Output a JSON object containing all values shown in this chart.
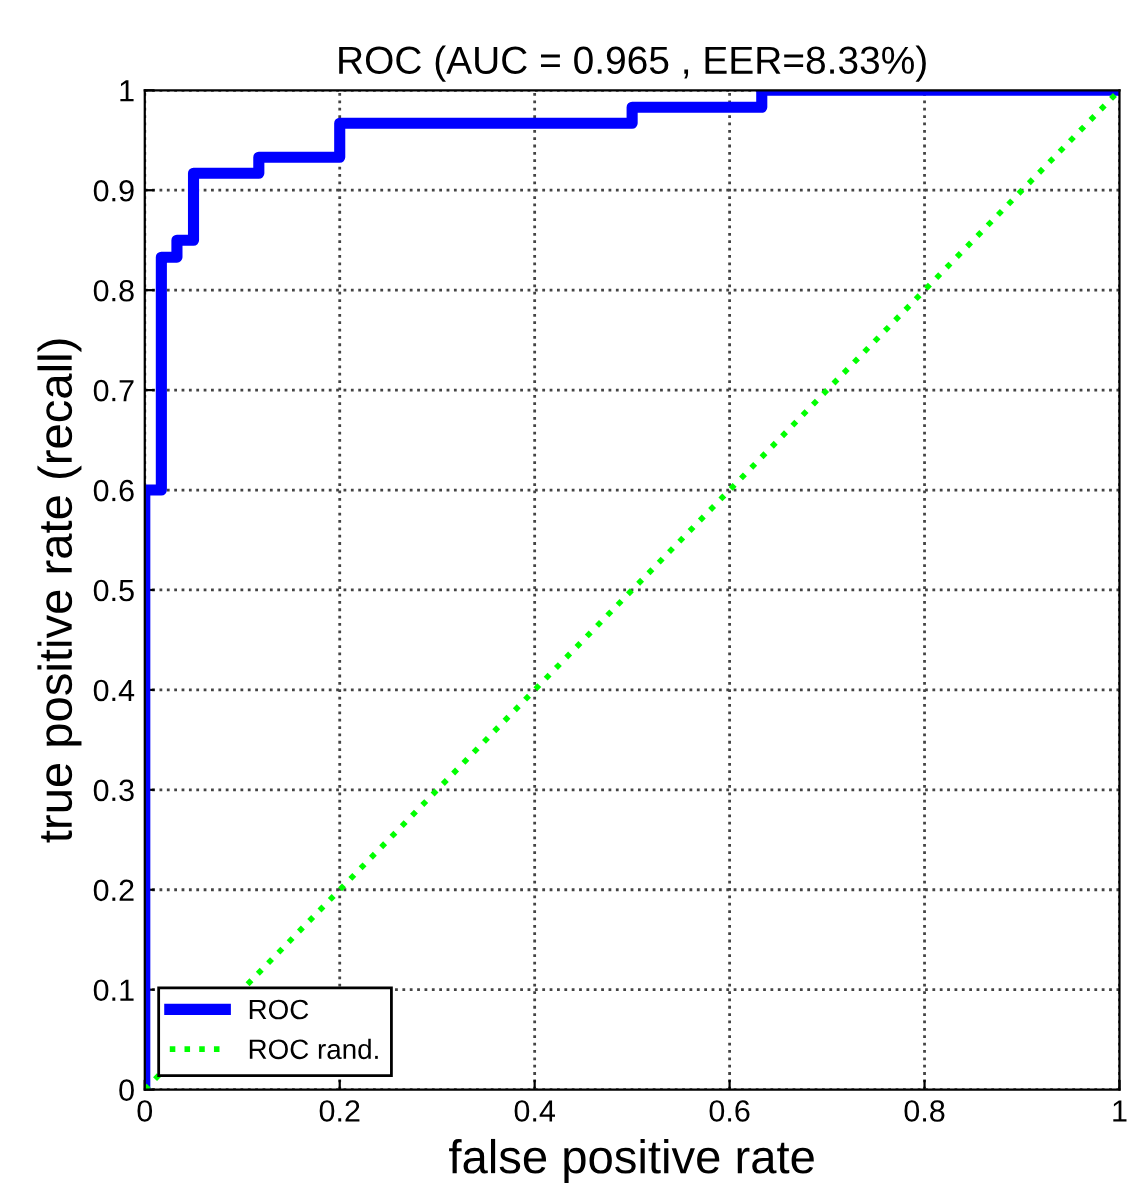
{
  "chart_data": {
    "type": "line",
    "title": "ROC (AUC = 0.965 , EER=8.33%)",
    "xlabel": "false positive rate",
    "ylabel": "true positive rate (recall)",
    "series": [
      {
        "name": "ROC",
        "color": "#0000ff",
        "line_style": "solid",
        "x": [
          0,
          0,
          0.017,
          0.017,
          0.033,
          0.033,
          0.05,
          0.05,
          0.117,
          0.117,
          0.2,
          0.2,
          0.5,
          0.5,
          0.633,
          0.633,
          1
        ],
        "values": [
          0,
          0.6,
          0.6,
          0.833,
          0.833,
          0.85,
          0.85,
          0.917,
          0.917,
          0.933,
          0.933,
          0.967,
          0.967,
          0.983,
          0.983,
          1,
          1
        ]
      },
      {
        "name": "ROC rand.",
        "color": "#00ff00",
        "line_style": "dotted",
        "x": [
          0,
          1
        ],
        "values": [
          0,
          1
        ]
      }
    ],
    "xlim": [
      0,
      1
    ],
    "ylim": [
      0,
      1
    ],
    "xticks": [
      0,
      0.2,
      0.4,
      0.6,
      0.8,
      1
    ],
    "yticks": [
      0,
      0.1,
      0.2,
      0.3,
      0.4,
      0.5,
      0.6,
      0.7,
      0.8,
      0.9,
      1
    ],
    "grid": true,
    "legend": "bottom left",
    "marker": "none"
  }
}
